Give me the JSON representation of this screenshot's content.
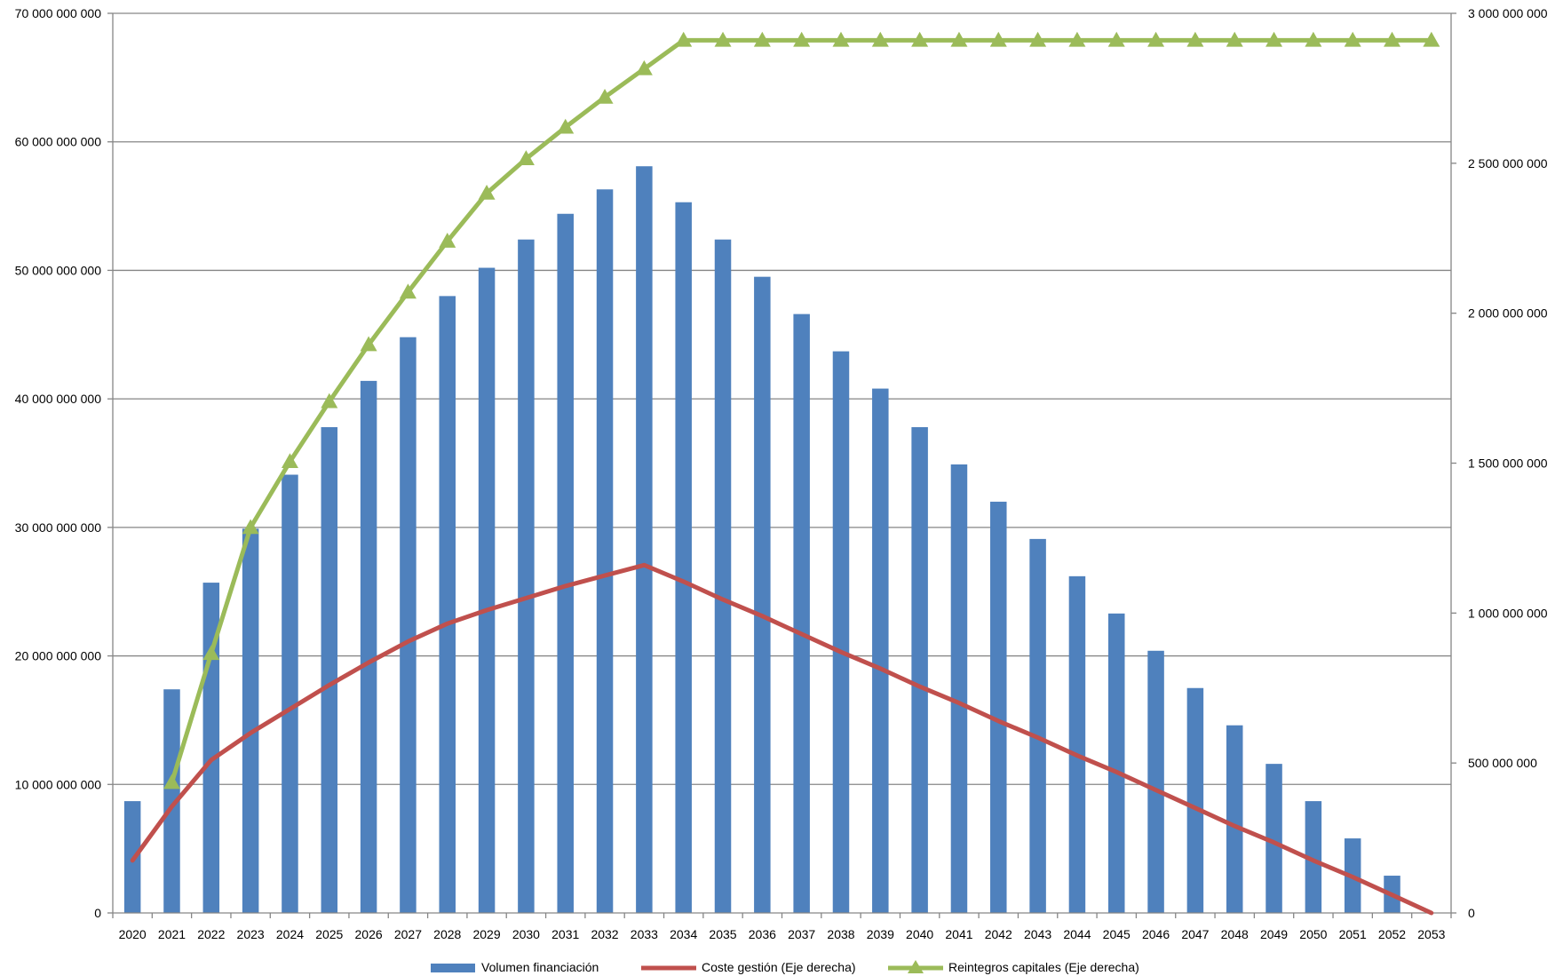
{
  "chart_data": {
    "type": "bar",
    "title": "",
    "xlabel": "",
    "ylabel": "",
    "categories": [
      "2020",
      "2021",
      "2022",
      "2023",
      "2024",
      "2025",
      "2026",
      "2027",
      "2028",
      "2029",
      "2030",
      "2031",
      "2032",
      "2033",
      "2034",
      "2035",
      "2036",
      "2037",
      "2038",
      "2039",
      "2040",
      "2041",
      "2042",
      "2043",
      "2044",
      "2045",
      "2046",
      "2047",
      "2048",
      "2049",
      "2050",
      "2051",
      "2052",
      "2053"
    ],
    "ylim_left": [
      0,
      70000000000
    ],
    "ylim_right": [
      0,
      3000000000
    ],
    "left_ticks": [
      {
        "value": 0,
        "label": "0"
      },
      {
        "value": 10000000000,
        "label": "10 000 000 000"
      },
      {
        "value": 20000000000,
        "label": "20 000 000 000"
      },
      {
        "value": 30000000000,
        "label": "30 000 000 000"
      },
      {
        "value": 40000000000,
        "label": "40 000 000 000"
      },
      {
        "value": 50000000000,
        "label": "50 000 000 000"
      },
      {
        "value": 60000000000,
        "label": "60 000 000 000"
      },
      {
        "value": 70000000000,
        "label": "70 000 000 000"
      }
    ],
    "right_ticks": [
      {
        "value": 0,
        "label": "0"
      },
      {
        "value": 500000000,
        "label": "500 000 000"
      },
      {
        "value": 1000000000,
        "label": "1 000 000 000"
      },
      {
        "value": 1500000000,
        "label": "1 500 000 000"
      },
      {
        "value": 2000000000,
        "label": "2 000 000 000"
      },
      {
        "value": 2500000000,
        "label": "2 500 000 000"
      },
      {
        "value": 3000000000,
        "label": "3 000 000 000"
      }
    ],
    "grid": true,
    "legend_position": "bottom",
    "series": [
      {
        "name": "Volumen financiación",
        "kind": "bar",
        "axis": "left",
        "color": "#4F81BD",
        "values": [
          8700000000,
          17400000000,
          25700000000,
          29900000000,
          34100000000,
          37800000000,
          41400000000,
          44800000000,
          48000000000,
          50200000000,
          52400000000,
          54400000000,
          56300000000,
          58100000000,
          55300000000,
          52400000000,
          49500000000,
          46600000000,
          43700000000,
          40800000000,
          37800000000,
          34900000000,
          32000000000,
          29100000000,
          26200000000,
          23300000000,
          20400000000,
          17500000000,
          14600000000,
          11600000000,
          8700000000,
          5800000000,
          2900000000,
          0
        ]
      },
      {
        "name": "Coste gestión (Eje derecha)",
        "kind": "line",
        "axis": "right",
        "color": "#C0504D",
        "values": [
          175000000,
          355000000,
          510000000,
          600000000,
          680000000,
          760000000,
          835000000,
          905000000,
          965000000,
          1010000000,
          1050000000,
          1090000000,
          1125000000,
          1160000000,
          1105000000,
          1045000000,
          990000000,
          930000000,
          870000000,
          815000000,
          755000000,
          700000000,
          640000000,
          585000000,
          525000000,
          470000000,
          410000000,
          350000000,
          290000000,
          235000000,
          175000000,
          120000000,
          60000000,
          0
        ]
      },
      {
        "name": "Reintegros capitales (Eje derecha)",
        "kind": "line",
        "axis": "right",
        "color": "#9BBB59",
        "marker": "triangle",
        "values": [
          null,
          435000000,
          865000000,
          1285000000,
          1505000000,
          1705000000,
          1895000000,
          2070000000,
          2240000000,
          2400000000,
          2515000000,
          2620000000,
          2720000000,
          2815000000,
          2910000000,
          2910000000,
          2910000000,
          2910000000,
          2910000000,
          2910000000,
          2910000000,
          2910000000,
          2910000000,
          2910000000,
          2910000000,
          2910000000,
          2910000000,
          2910000000,
          2910000000,
          2910000000,
          2910000000,
          2910000000,
          2910000000,
          2910000000
        ]
      }
    ]
  }
}
